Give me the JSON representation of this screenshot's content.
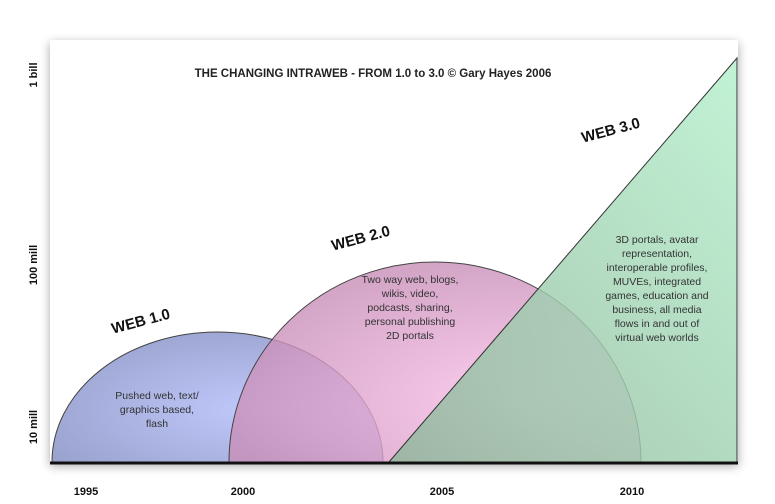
{
  "title": "THE CHANGING INTRAWEB - FROM 1.0 to 3.0 © Gary Hayes 2006",
  "y_axis_labels": [
    "10 mill",
    "100 mill",
    "1 bill"
  ],
  "x_axis_labels": [
    "1995",
    "2000",
    "2005",
    "2010"
  ],
  "eras": [
    {
      "label": "WEB 1.0",
      "color": "#aab4ee",
      "lines": [
        "Pushed web, text/",
        "graphics based,",
        "flash"
      ]
    },
    {
      "label": "WEB 2.0",
      "color": "#f0b0de",
      "lines": [
        "Two way web, blogs,",
        "wikis, video,",
        "podcasts, sharing,",
        "personal publishing",
        "2D portals"
      ]
    },
    {
      "label": "WEB 3.0",
      "color": "#a8e6c0",
      "lines": [
        "3D portals, avatar",
        "representation,",
        "interoperable profiles,",
        "MUVEs, integrated",
        "games, education and",
        "business, all media",
        "flows in and out of",
        "virtual web worlds"
      ]
    }
  ]
}
